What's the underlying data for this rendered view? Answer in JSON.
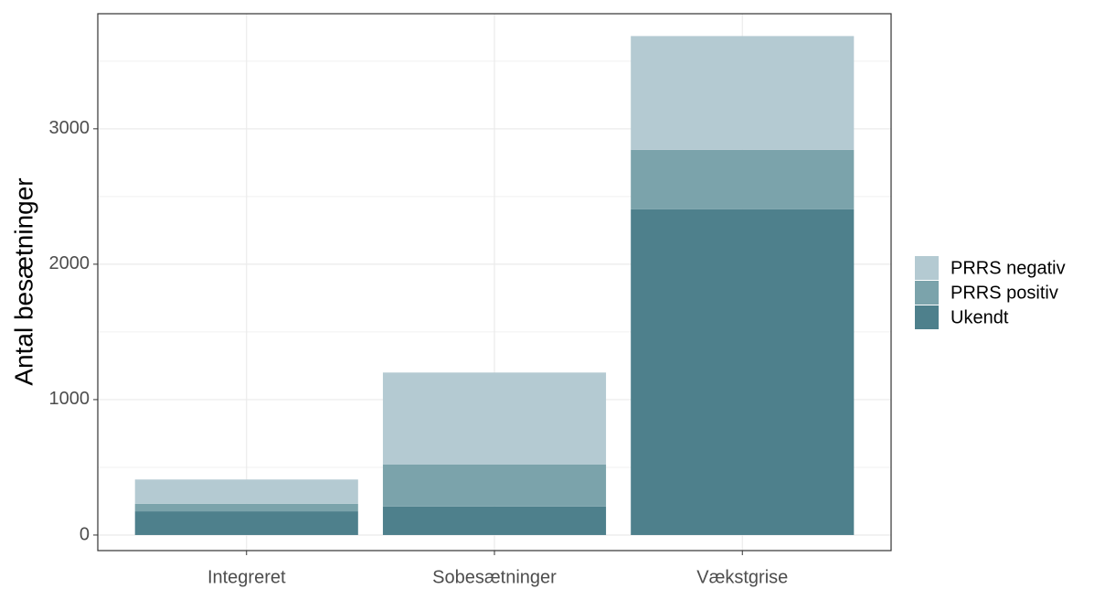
{
  "chart_data": {
    "type": "stacked_bar",
    "y_label": "Antal besætninger",
    "categories": [
      "Integreret",
      "Sobesætninger",
      "Vækstgrise"
    ],
    "series": [
      {
        "name": "PRRS negativ",
        "color": "#b4cad2",
        "values": [
          180,
          680,
          840
        ]
      },
      {
        "name": "PRRS positiv",
        "color": "#7ba3ab",
        "values": [
          55,
          310,
          440
        ]
      },
      {
        "name": "Ukendt",
        "color": "#4e808c",
        "values": [
          175,
          210,
          2405
        ]
      }
    ],
    "ylim": [
      -115,
      3850
    ],
    "yticks": [
      0,
      1000,
      2000,
      3000
    ],
    "grid": true
  }
}
